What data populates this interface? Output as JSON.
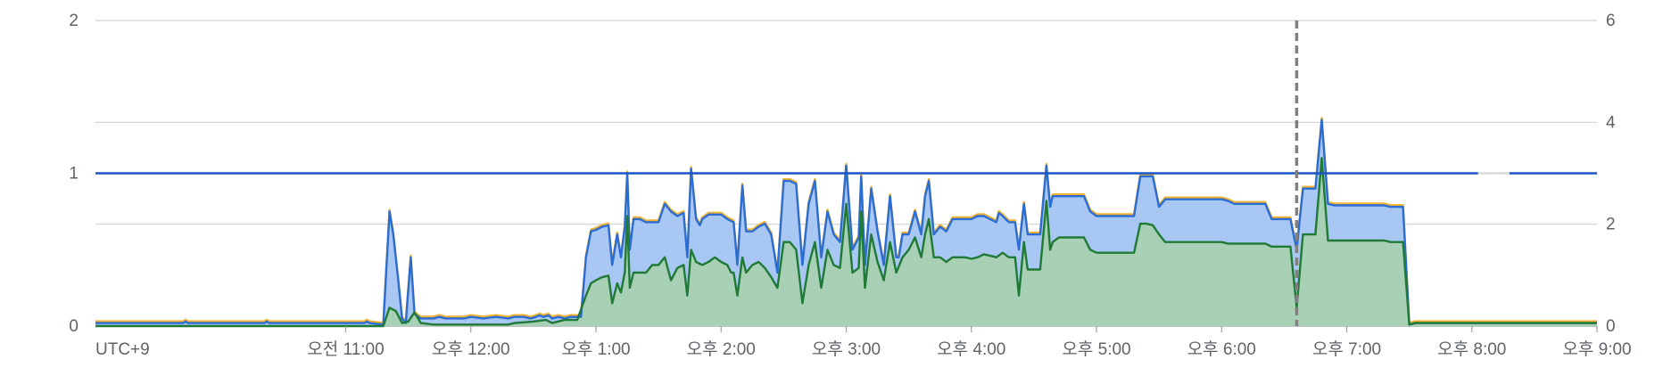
{
  "chart_data": {
    "type": "area",
    "x_timezone_label": "UTC+9",
    "x_ticks": [
      "오전 11:00",
      "오후 12:00",
      "오후 1:00",
      "오후 2:00",
      "오후 3:00",
      "오후 4:00",
      "오후 5:00",
      "오후 6:00",
      "오후 7:00",
      "오후 8:00",
      "오후 9:00"
    ],
    "x_range_hours": [
      9.0,
      21.0
    ],
    "y_left_ticks": [
      "0",
      "1",
      "2"
    ],
    "y_left_range": [
      0,
      2
    ],
    "y_right_ticks": [
      "0",
      "2",
      "4",
      "6"
    ],
    "y_right_range": [
      0,
      6
    ],
    "grid": true,
    "legend": "none",
    "threshold": {
      "value": 1,
      "axis": "left",
      "color": "#1a57c4"
    },
    "now_marker_hour": 18.6,
    "colors": {
      "blue_line": "#2a6dd4",
      "blue_fill": "#a9c7f3",
      "green_line": "#1f7a35",
      "green_fill": "#a8d0b4",
      "orange_line": "#f2b233",
      "grid": "#d0d0d0",
      "marker": "#808080"
    },
    "series": [
      {
        "axis": "left",
        "points": [
          [
            9.0,
            0.02
          ],
          [
            9.7,
            0.02
          ],
          [
            9.72,
            0.03
          ],
          [
            9.74,
            0.02
          ],
          [
            10.35,
            0.02
          ],
          [
            10.37,
            0.03
          ],
          [
            10.39,
            0.02
          ],
          [
            10.9,
            0.02
          ],
          [
            11.15,
            0.02
          ],
          [
            11.17,
            0.03
          ],
          [
            11.19,
            0.02
          ],
          [
            11.3,
            0.01
          ],
          [
            11.35,
            0.75
          ],
          [
            11.38,
            0.6
          ],
          [
            11.42,
            0.3
          ],
          [
            11.45,
            0.05
          ],
          [
            11.48,
            0.02
          ],
          [
            11.52,
            0.45
          ],
          [
            11.55,
            0.08
          ],
          [
            11.6,
            0.05
          ],
          [
            11.7,
            0.05
          ],
          [
            11.75,
            0.06
          ],
          [
            11.8,
            0.05
          ],
          [
            11.95,
            0.05
          ],
          [
            12.0,
            0.06
          ],
          [
            12.1,
            0.05
          ],
          [
            12.2,
            0.06
          ],
          [
            12.3,
            0.05
          ],
          [
            12.35,
            0.06
          ],
          [
            12.42,
            0.06
          ],
          [
            12.48,
            0.05
          ],
          [
            12.52,
            0.06
          ],
          [
            12.55,
            0.07
          ],
          [
            12.58,
            0.06
          ],
          [
            12.62,
            0.07
          ],
          [
            12.65,
            0.05
          ],
          [
            12.7,
            0.06
          ],
          [
            12.75,
            0.05
          ],
          [
            12.8,
            0.06
          ],
          [
            12.88,
            0.06
          ],
          [
            12.92,
            0.45
          ],
          [
            12.96,
            0.62
          ],
          [
            13.0,
            0.63
          ],
          [
            13.05,
            0.65
          ],
          [
            13.1,
            0.66
          ],
          [
            13.13,
            0.4
          ],
          [
            13.17,
            0.6
          ],
          [
            13.2,
            0.45
          ],
          [
            13.23,
            0.65
          ],
          [
            13.25,
            1.0
          ],
          [
            13.27,
            0.5
          ],
          [
            13.3,
            0.7
          ],
          [
            13.35,
            0.7
          ],
          [
            13.4,
            0.68
          ],
          [
            13.5,
            0.68
          ],
          [
            13.55,
            0.8
          ],
          [
            13.6,
            0.75
          ],
          [
            13.65,
            0.72
          ],
          [
            13.7,
            0.74
          ],
          [
            13.73,
            0.45
          ],
          [
            13.76,
            1.03
          ],
          [
            13.8,
            0.7
          ],
          [
            13.83,
            0.66
          ],
          [
            13.85,
            0.7
          ],
          [
            13.9,
            0.73
          ],
          [
            14.0,
            0.73
          ],
          [
            14.05,
            0.7
          ],
          [
            14.1,
            0.68
          ],
          [
            14.13,
            0.4
          ],
          [
            14.17,
            0.92
          ],
          [
            14.2,
            0.62
          ],
          [
            14.25,
            0.62
          ],
          [
            14.3,
            0.65
          ],
          [
            14.35,
            0.67
          ],
          [
            14.4,
            0.6
          ],
          [
            14.45,
            0.35
          ],
          [
            14.5,
            0.95
          ],
          [
            14.55,
            0.95
          ],
          [
            14.6,
            0.93
          ],
          [
            14.65,
            0.4
          ],
          [
            14.7,
            0.8
          ],
          [
            14.75,
            0.95
          ],
          [
            14.8,
            0.45
          ],
          [
            14.85,
            0.75
          ],
          [
            14.9,
            0.6
          ],
          [
            14.95,
            0.55
          ],
          [
            15.0,
            1.05
          ],
          [
            15.05,
            0.5
          ],
          [
            15.1,
            0.58
          ],
          [
            15.12,
            0.98
          ],
          [
            15.15,
            0.4
          ],
          [
            15.2,
            0.9
          ],
          [
            15.25,
            0.62
          ],
          [
            15.3,
            0.4
          ],
          [
            15.35,
            0.85
          ],
          [
            15.4,
            0.45
          ],
          [
            15.42,
            0.45
          ],
          [
            15.45,
            0.6
          ],
          [
            15.5,
            0.6
          ],
          [
            15.55,
            0.75
          ],
          [
            15.6,
            0.6
          ],
          [
            15.63,
            0.85
          ],
          [
            15.66,
            0.95
          ],
          [
            15.7,
            0.6
          ],
          [
            15.75,
            0.65
          ],
          [
            15.8,
            0.62
          ],
          [
            15.85,
            0.7
          ],
          [
            16.0,
            0.7
          ],
          [
            16.05,
            0.72
          ],
          [
            16.1,
            0.72
          ],
          [
            16.15,
            0.7
          ],
          [
            16.2,
            0.68
          ],
          [
            16.22,
            0.74
          ],
          [
            16.25,
            0.72
          ],
          [
            16.3,
            0.68
          ],
          [
            16.35,
            0.68
          ],
          [
            16.38,
            0.5
          ],
          [
            16.42,
            0.8
          ],
          [
            16.45,
            0.6
          ],
          [
            16.5,
            0.6
          ],
          [
            16.55,
            0.6
          ],
          [
            16.6,
            1.05
          ],
          [
            16.63,
            0.78
          ],
          [
            16.65,
            0.85
          ],
          [
            16.7,
            0.85
          ],
          [
            16.8,
            0.85
          ],
          [
            16.9,
            0.85
          ],
          [
            16.95,
            0.75
          ],
          [
            17.0,
            0.72
          ],
          [
            17.2,
            0.72
          ],
          [
            17.3,
            0.72
          ],
          [
            17.35,
            0.98
          ],
          [
            17.4,
            0.98
          ],
          [
            17.45,
            0.98
          ],
          [
            17.5,
            0.78
          ],
          [
            17.55,
            0.83
          ],
          [
            17.65,
            0.83
          ],
          [
            18.0,
            0.83
          ],
          [
            18.05,
            0.82
          ],
          [
            18.1,
            0.8
          ],
          [
            18.3,
            0.8
          ],
          [
            18.35,
            0.8
          ],
          [
            18.4,
            0.7
          ],
          [
            18.55,
            0.7
          ],
          [
            18.6,
            0.5
          ],
          [
            18.65,
            0.9
          ],
          [
            18.7,
            0.9
          ],
          [
            18.75,
            0.9
          ],
          [
            18.8,
            1.35
          ],
          [
            18.85,
            0.8
          ],
          [
            18.9,
            0.79
          ],
          [
            19.0,
            0.79
          ],
          [
            19.3,
            0.79
          ],
          [
            19.35,
            0.78
          ],
          [
            19.45,
            0.78
          ],
          [
            19.5,
            0.01
          ],
          [
            19.55,
            0.02
          ],
          [
            21.0,
            0.02
          ]
        ]
      },
      {
        "axis": "left",
        "points": [
          [
            9.0,
            0.0
          ],
          [
            10.9,
            0.0
          ],
          [
            11.15,
            0.0
          ],
          [
            11.3,
            0.0
          ],
          [
            11.35,
            0.12
          ],
          [
            11.4,
            0.1
          ],
          [
            11.45,
            0.02
          ],
          [
            11.5,
            0.03
          ],
          [
            11.55,
            0.09
          ],
          [
            11.6,
            0.02
          ],
          [
            11.7,
            0.01
          ],
          [
            12.0,
            0.01
          ],
          [
            12.3,
            0.01
          ],
          [
            12.35,
            0.02
          ],
          [
            12.5,
            0.03
          ],
          [
            12.6,
            0.04
          ],
          [
            12.65,
            0.02
          ],
          [
            12.75,
            0.04
          ],
          [
            12.85,
            0.04
          ],
          [
            12.92,
            0.2
          ],
          [
            12.96,
            0.28
          ],
          [
            13.0,
            0.3
          ],
          [
            13.05,
            0.32
          ],
          [
            13.1,
            0.33
          ],
          [
            13.13,
            0.15
          ],
          [
            13.17,
            0.28
          ],
          [
            13.2,
            0.22
          ],
          [
            13.23,
            0.35
          ],
          [
            13.25,
            0.72
          ],
          [
            13.27,
            0.25
          ],
          [
            13.3,
            0.35
          ],
          [
            13.35,
            0.35
          ],
          [
            13.4,
            0.35
          ],
          [
            13.45,
            0.4
          ],
          [
            13.5,
            0.4
          ],
          [
            13.55,
            0.45
          ],
          [
            13.6,
            0.3
          ],
          [
            13.65,
            0.38
          ],
          [
            13.7,
            0.4
          ],
          [
            13.73,
            0.2
          ],
          [
            13.76,
            0.5
          ],
          [
            13.8,
            0.42
          ],
          [
            13.85,
            0.4
          ],
          [
            13.9,
            0.42
          ],
          [
            13.95,
            0.45
          ],
          [
            14.0,
            0.42
          ],
          [
            14.05,
            0.4
          ],
          [
            14.08,
            0.35
          ],
          [
            14.1,
            0.35
          ],
          [
            14.13,
            0.2
          ],
          [
            14.17,
            0.45
          ],
          [
            14.2,
            0.35
          ],
          [
            14.25,
            0.4
          ],
          [
            14.3,
            0.42
          ],
          [
            14.35,
            0.38
          ],
          [
            14.4,
            0.32
          ],
          [
            14.45,
            0.25
          ],
          [
            14.5,
            0.55
          ],
          [
            14.55,
            0.55
          ],
          [
            14.6,
            0.5
          ],
          [
            14.65,
            0.15
          ],
          [
            14.7,
            0.4
          ],
          [
            14.75,
            0.55
          ],
          [
            14.8,
            0.25
          ],
          [
            14.85,
            0.5
          ],
          [
            14.9,
            0.4
          ],
          [
            14.95,
            0.38
          ],
          [
            15.0,
            0.8
          ],
          [
            15.05,
            0.35
          ],
          [
            15.1,
            0.38
          ],
          [
            15.12,
            0.75
          ],
          [
            15.15,
            0.25
          ],
          [
            15.2,
            0.6
          ],
          [
            15.25,
            0.42
          ],
          [
            15.3,
            0.3
          ],
          [
            15.35,
            0.55
          ],
          [
            15.4,
            0.35
          ],
          [
            15.45,
            0.45
          ],
          [
            15.5,
            0.5
          ],
          [
            15.55,
            0.58
          ],
          [
            15.6,
            0.45
          ],
          [
            15.63,
            0.6
          ],
          [
            15.66,
            0.7
          ],
          [
            15.7,
            0.45
          ],
          [
            15.75,
            0.45
          ],
          [
            15.8,
            0.42
          ],
          [
            15.85,
            0.45
          ],
          [
            15.95,
            0.45
          ],
          [
            16.0,
            0.44
          ],
          [
            16.05,
            0.45
          ],
          [
            16.1,
            0.47
          ],
          [
            16.15,
            0.46
          ],
          [
            16.2,
            0.45
          ],
          [
            16.25,
            0.48
          ],
          [
            16.3,
            0.45
          ],
          [
            16.35,
            0.45
          ],
          [
            16.38,
            0.2
          ],
          [
            16.42,
            0.55
          ],
          [
            16.45,
            0.37
          ],
          [
            16.5,
            0.37
          ],
          [
            16.55,
            0.37
          ],
          [
            16.6,
            0.82
          ],
          [
            16.63,
            0.5
          ],
          [
            16.65,
            0.55
          ],
          [
            16.7,
            0.58
          ],
          [
            16.8,
            0.58
          ],
          [
            16.9,
            0.58
          ],
          [
            16.95,
            0.5
          ],
          [
            17.0,
            0.48
          ],
          [
            17.2,
            0.48
          ],
          [
            17.3,
            0.48
          ],
          [
            17.35,
            0.67
          ],
          [
            17.4,
            0.67
          ],
          [
            17.45,
            0.66
          ],
          [
            17.5,
            0.6
          ],
          [
            17.55,
            0.55
          ],
          [
            17.65,
            0.55
          ],
          [
            18.0,
            0.55
          ],
          [
            18.05,
            0.54
          ],
          [
            18.1,
            0.54
          ],
          [
            18.3,
            0.54
          ],
          [
            18.35,
            0.54
          ],
          [
            18.4,
            0.52
          ],
          [
            18.55,
            0.52
          ],
          [
            18.6,
            0.12
          ],
          [
            18.65,
            0.6
          ],
          [
            18.7,
            0.6
          ],
          [
            18.75,
            0.6
          ],
          [
            18.8,
            1.1
          ],
          [
            18.85,
            0.56
          ],
          [
            18.9,
            0.56
          ],
          [
            19.0,
            0.56
          ],
          [
            19.3,
            0.56
          ],
          [
            19.35,
            0.55
          ],
          [
            19.45,
            0.55
          ],
          [
            19.5,
            0.01
          ],
          [
            19.55,
            0.02
          ],
          [
            21.0,
            0.02
          ]
        ]
      }
    ]
  }
}
